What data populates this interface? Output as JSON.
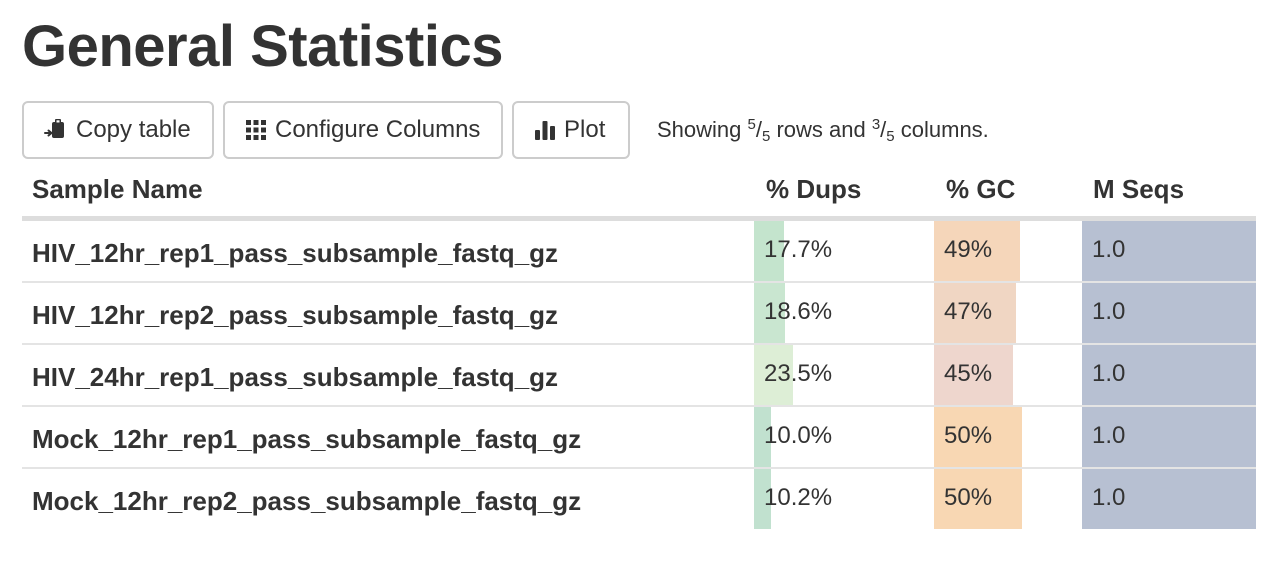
{
  "page": {
    "title": "General Statistics"
  },
  "toolbar": {
    "copy_label": "Copy table",
    "configure_label": "Configure Columns",
    "plot_label": "Plot",
    "showing_prefix": "Showing ",
    "rows_shown": "5",
    "rows_total": "5",
    "rows_word": " rows and ",
    "cols_shown": "3",
    "cols_total": "5",
    "cols_word": " columns."
  },
  "table": {
    "columns": {
      "sample": "Sample Name",
      "dups": "% Dups",
      "gc": "% GC",
      "seqs": "M Seqs"
    },
    "rows": [
      {
        "sample": "HIV_12hr_rep1_pass_subsample_fastq_gz",
        "dups": "17.7%",
        "dups_value": 17.7,
        "dups_color": "#c4e4cd",
        "gc": "49%",
        "gc_value": 49,
        "gc_color": "#f5d6ba",
        "seqs": "1.0",
        "seqs_value": 1.0
      },
      {
        "sample": "HIV_12hr_rep2_pass_subsample_fastq_gz",
        "dups": "18.6%",
        "dups_value": 18.6,
        "dups_color": "#c9e6d0",
        "gc": "47%",
        "gc_value": 47,
        "gc_color": "#f0d6c3",
        "seqs": "1.0",
        "seqs_value": 1.0
      },
      {
        "sample": "HIV_24hr_rep1_pass_subsample_fastq_gz",
        "dups": "23.5%",
        "dups_value": 23.5,
        "dups_color": "#ddeed6",
        "gc": "45%",
        "gc_value": 45,
        "gc_color": "#eed6cd",
        "seqs": "1.0",
        "seqs_value": 1.0
      },
      {
        "sample": "Mock_12hr_rep1_pass_subsample_fastq_gz",
        "dups": "10.0%",
        "dups_value": 10.0,
        "dups_color": "#c1e1cf",
        "gc": "50%",
        "gc_value": 50,
        "gc_color": "#f8d7b3",
        "seqs": "1.0",
        "seqs_value": 1.0
      },
      {
        "sample": "Mock_12hr_rep2_pass_subsample_fastq_gz",
        "dups": "10.2%",
        "dups_value": 10.2,
        "dups_color": "#c1e1cf",
        "gc": "50%",
        "gc_value": 50,
        "gc_color": "#f8d7b3",
        "seqs": "1.0",
        "seqs_value": 1.0
      }
    ],
    "seqs_color": "#b7c0d2",
    "header_border_color": "#dddddd"
  },
  "icons": {
    "copy": "clipboard-icon",
    "configure": "grid-icon",
    "plot": "bar-chart-icon"
  }
}
